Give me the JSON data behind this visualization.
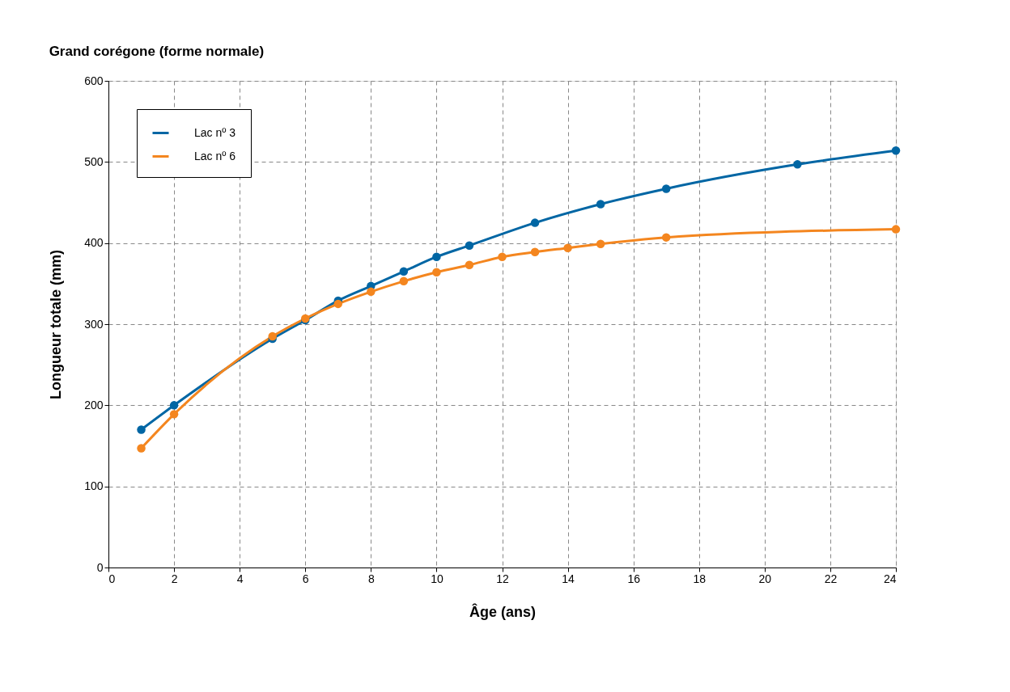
{
  "chart_data": {
    "type": "line",
    "title": "Grand corégone (forme normale)",
    "xlabel": "Âge (ans)",
    "ylabel": "Longueur totale (mm)",
    "xlim": [
      0,
      24
    ],
    "xticks": [
      0,
      2,
      4,
      6,
      8,
      10,
      12,
      14,
      16,
      18,
      20,
      22,
      24
    ],
    "ylim": [
      0,
      600
    ],
    "yticks": [
      0,
      100,
      200,
      300,
      400,
      500,
      600
    ],
    "grid": true,
    "legend": "top left",
    "marker": "circle",
    "line_style": "solid",
    "series": [
      {
        "name": "Lac nº 3",
        "color": "#0066a4",
        "x": [
          1,
          2,
          5,
          6,
          7,
          8,
          9,
          10,
          11,
          13,
          15,
          17,
          21,
          24
        ],
        "values": [
          170,
          200,
          282,
          305,
          329,
          347,
          365,
          383,
          397,
          425,
          448,
          467,
          497,
          514
        ]
      },
      {
        "name": "Lac nº 6",
        "color": "#f4861f",
        "x": [
          1,
          2,
          5,
          6,
          7,
          8,
          9,
          10,
          11,
          12,
          13,
          14,
          15,
          17,
          24
        ],
        "values": [
          147,
          189,
          285,
          307,
          325,
          340,
          353,
          364,
          373,
          383,
          389,
          394,
          399,
          407,
          417
        ]
      }
    ]
  }
}
